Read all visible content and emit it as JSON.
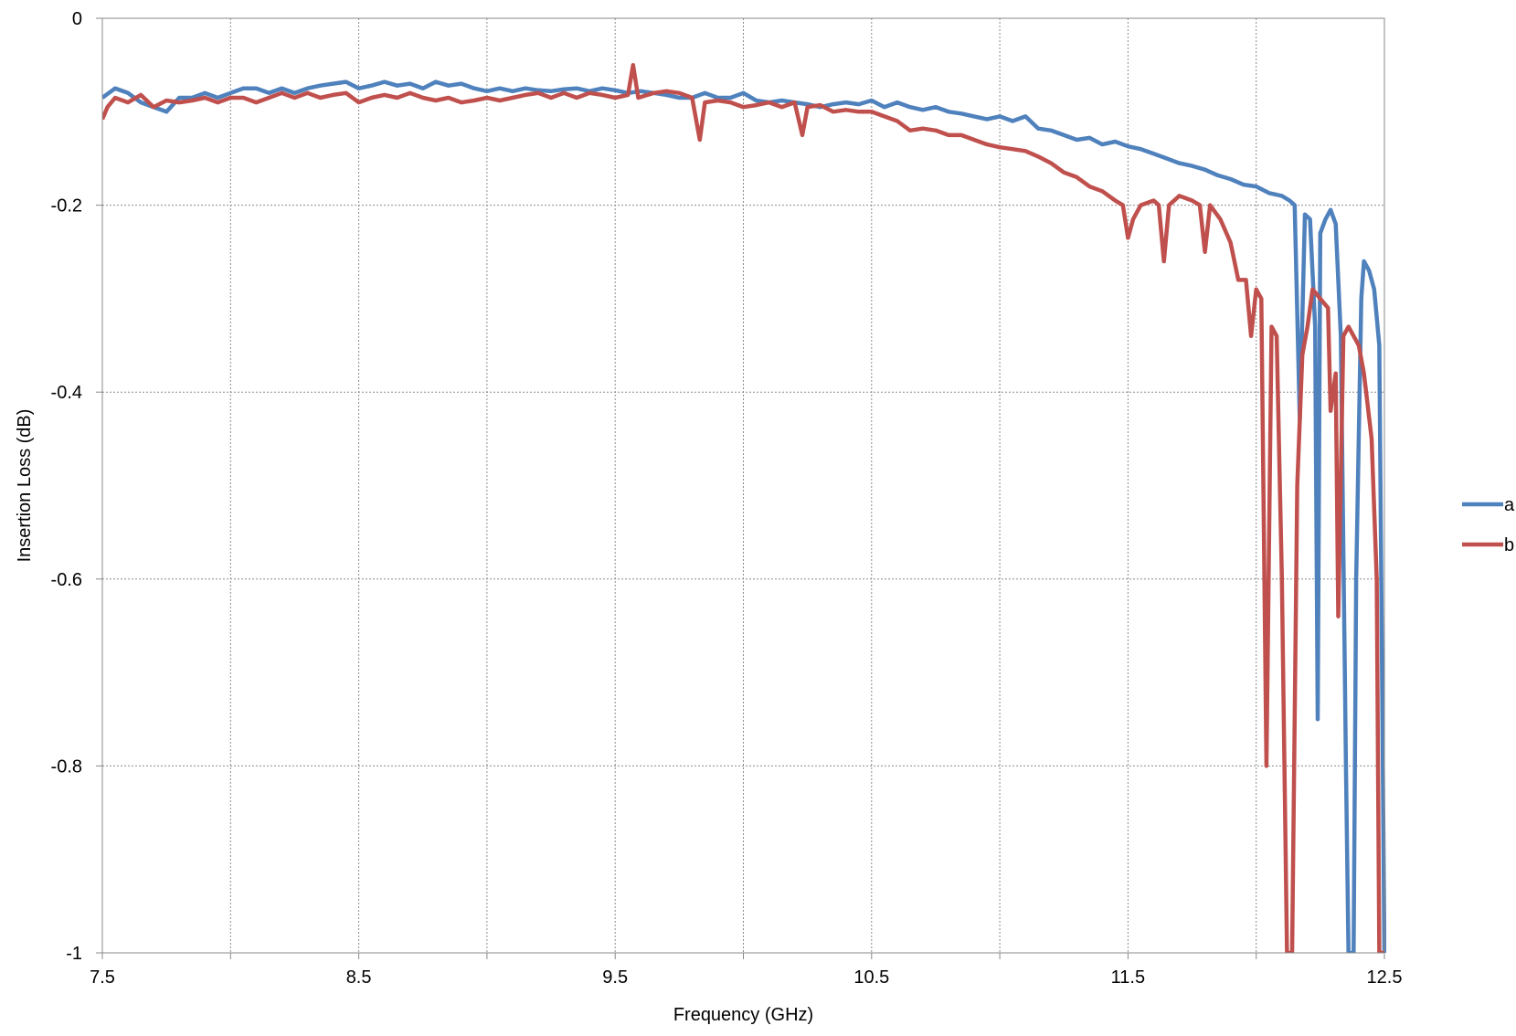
{
  "chart_data": {
    "type": "line",
    "title": "",
    "xlabel": "Frequency (GHz)",
    "ylabel": "Insertion Loss (dB)",
    "xlim": [
      7.5,
      12.5
    ],
    "ylim": [
      -1,
      0
    ],
    "x_ticks": [
      7.5,
      8.5,
      9.5,
      10.5,
      11.5,
      12.5
    ],
    "x_tick_labels": [
      "7.5",
      "8.5",
      "9.5",
      "10.5",
      "11.5",
      "12.5"
    ],
    "x_minor_gridlines": [
      8.0,
      9.0,
      10.0,
      11.0,
      12.0
    ],
    "y_ticks": [
      0,
      -0.2,
      -0.4,
      -0.6,
      -0.8,
      -1
    ],
    "y_tick_labels": [
      "0",
      "-0.2",
      "-0.4",
      "-0.6",
      "-0.8",
      "-1"
    ],
    "grid": true,
    "legend_position": "right",
    "series": [
      {
        "name": "a",
        "color": "#4f81bd",
        "points": [
          [
            7.5,
            -0.085
          ],
          [
            7.55,
            -0.075
          ],
          [
            7.6,
            -0.08
          ],
          [
            7.65,
            -0.09
          ],
          [
            7.7,
            -0.095
          ],
          [
            7.75,
            -0.1
          ],
          [
            7.8,
            -0.085
          ],
          [
            7.85,
            -0.085
          ],
          [
            7.9,
            -0.08
          ],
          [
            7.95,
            -0.085
          ],
          [
            8.0,
            -0.08
          ],
          [
            8.05,
            -0.075
          ],
          [
            8.1,
            -0.075
          ],
          [
            8.15,
            -0.08
          ],
          [
            8.2,
            -0.075
          ],
          [
            8.25,
            -0.08
          ],
          [
            8.3,
            -0.075
          ],
          [
            8.35,
            -0.072
          ],
          [
            8.4,
            -0.07
          ],
          [
            8.45,
            -0.068
          ],
          [
            8.5,
            -0.075
          ],
          [
            8.55,
            -0.072
          ],
          [
            8.6,
            -0.068
          ],
          [
            8.65,
            -0.072
          ],
          [
            8.7,
            -0.07
          ],
          [
            8.75,
            -0.075
          ],
          [
            8.8,
            -0.068
          ],
          [
            8.85,
            -0.072
          ],
          [
            8.9,
            -0.07
          ],
          [
            8.95,
            -0.075
          ],
          [
            9.0,
            -0.078
          ],
          [
            9.05,
            -0.075
          ],
          [
            9.1,
            -0.078
          ],
          [
            9.15,
            -0.075
          ],
          [
            9.2,
            -0.077
          ],
          [
            9.25,
            -0.078
          ],
          [
            9.3,
            -0.076
          ],
          [
            9.35,
            -0.075
          ],
          [
            9.4,
            -0.078
          ],
          [
            9.45,
            -0.075
          ],
          [
            9.5,
            -0.077
          ],
          [
            9.55,
            -0.08
          ],
          [
            9.6,
            -0.078
          ],
          [
            9.65,
            -0.08
          ],
          [
            9.7,
            -0.082
          ],
          [
            9.75,
            -0.085
          ],
          [
            9.8,
            -0.085
          ],
          [
            9.85,
            -0.08
          ],
          [
            9.9,
            -0.085
          ],
          [
            9.95,
            -0.085
          ],
          [
            10.0,
            -0.08
          ],
          [
            10.05,
            -0.088
          ],
          [
            10.1,
            -0.09
          ],
          [
            10.15,
            -0.088
          ],
          [
            10.2,
            -0.09
          ],
          [
            10.25,
            -0.092
          ],
          [
            10.3,
            -0.095
          ],
          [
            10.35,
            -0.092
          ],
          [
            10.4,
            -0.09
          ],
          [
            10.45,
            -0.092
          ],
          [
            10.5,
            -0.088
          ],
          [
            10.55,
            -0.095
          ],
          [
            10.6,
            -0.09
          ],
          [
            10.65,
            -0.095
          ],
          [
            10.7,
            -0.098
          ],
          [
            10.75,
            -0.095
          ],
          [
            10.8,
            -0.1
          ],
          [
            10.85,
            -0.102
          ],
          [
            10.9,
            -0.105
          ],
          [
            10.95,
            -0.108
          ],
          [
            11.0,
            -0.105
          ],
          [
            11.05,
            -0.11
          ],
          [
            11.1,
            -0.105
          ],
          [
            11.15,
            -0.118
          ],
          [
            11.2,
            -0.12
          ],
          [
            11.25,
            -0.125
          ],
          [
            11.3,
            -0.13
          ],
          [
            11.35,
            -0.128
          ],
          [
            11.4,
            -0.135
          ],
          [
            11.45,
            -0.132
          ],
          [
            11.5,
            -0.137
          ],
          [
            11.55,
            -0.14
          ],
          [
            11.6,
            -0.145
          ],
          [
            11.65,
            -0.15
          ],
          [
            11.7,
            -0.155
          ],
          [
            11.75,
            -0.158
          ],
          [
            11.8,
            -0.162
          ],
          [
            11.85,
            -0.168
          ],
          [
            11.9,
            -0.172
          ],
          [
            11.95,
            -0.178
          ],
          [
            12.0,
            -0.18
          ],
          [
            12.05,
            -0.187
          ],
          [
            12.1,
            -0.19
          ],
          [
            12.13,
            -0.195
          ],
          [
            12.15,
            -0.2
          ],
          [
            12.17,
            -0.43
          ],
          [
            12.19,
            -0.21
          ],
          [
            12.21,
            -0.215
          ],
          [
            12.23,
            -0.33
          ],
          [
            12.24,
            -0.75
          ],
          [
            12.25,
            -0.23
          ],
          [
            12.27,
            -0.215
          ],
          [
            12.29,
            -0.205
          ],
          [
            12.31,
            -0.22
          ],
          [
            12.33,
            -0.34
          ],
          [
            12.35,
            -0.8
          ],
          [
            12.36,
            -1.0
          ],
          [
            12.37,
            -1.0
          ],
          [
            12.38,
            -1.0
          ],
          [
            12.39,
            -0.6
          ],
          [
            12.41,
            -0.3
          ],
          [
            12.42,
            -0.26
          ],
          [
            12.44,
            -0.27
          ],
          [
            12.46,
            -0.29
          ],
          [
            12.48,
            -0.35
          ],
          [
            12.5,
            -1.0
          ]
        ]
      },
      {
        "name": "b",
        "color": "#c0504d",
        "points": [
          [
            7.5,
            -0.108
          ],
          [
            7.52,
            -0.095
          ],
          [
            7.55,
            -0.085
          ],
          [
            7.6,
            -0.09
          ],
          [
            7.65,
            -0.082
          ],
          [
            7.7,
            -0.095
          ],
          [
            7.75,
            -0.088
          ],
          [
            7.8,
            -0.09
          ],
          [
            7.85,
            -0.088
          ],
          [
            7.9,
            -0.085
          ],
          [
            7.95,
            -0.09
          ],
          [
            8.0,
            -0.085
          ],
          [
            8.05,
            -0.085
          ],
          [
            8.1,
            -0.09
          ],
          [
            8.15,
            -0.085
          ],
          [
            8.2,
            -0.08
          ],
          [
            8.25,
            -0.085
          ],
          [
            8.3,
            -0.08
          ],
          [
            8.35,
            -0.085
          ],
          [
            8.4,
            -0.082
          ],
          [
            8.45,
            -0.08
          ],
          [
            8.5,
            -0.09
          ],
          [
            8.55,
            -0.085
          ],
          [
            8.6,
            -0.082
          ],
          [
            8.65,
            -0.085
          ],
          [
            8.7,
            -0.08
          ],
          [
            8.75,
            -0.085
          ],
          [
            8.8,
            -0.088
          ],
          [
            8.85,
            -0.085
          ],
          [
            8.9,
            -0.09
          ],
          [
            8.95,
            -0.088
          ],
          [
            9.0,
            -0.085
          ],
          [
            9.05,
            -0.088
          ],
          [
            9.1,
            -0.085
          ],
          [
            9.15,
            -0.082
          ],
          [
            9.2,
            -0.08
          ],
          [
            9.25,
            -0.085
          ],
          [
            9.3,
            -0.08
          ],
          [
            9.35,
            -0.085
          ],
          [
            9.4,
            -0.08
          ],
          [
            9.45,
            -0.082
          ],
          [
            9.5,
            -0.085
          ],
          [
            9.55,
            -0.082
          ],
          [
            9.57,
            -0.05
          ],
          [
            9.59,
            -0.085
          ],
          [
            9.65,
            -0.08
          ],
          [
            9.7,
            -0.078
          ],
          [
            9.75,
            -0.08
          ],
          [
            9.8,
            -0.085
          ],
          [
            9.83,
            -0.13
          ],
          [
            9.85,
            -0.09
          ],
          [
            9.9,
            -0.088
          ],
          [
            9.95,
            -0.09
          ],
          [
            10.0,
            -0.095
          ],
          [
            10.05,
            -0.093
          ],
          [
            10.1,
            -0.09
          ],
          [
            10.15,
            -0.095
          ],
          [
            10.2,
            -0.09
          ],
          [
            10.23,
            -0.125
          ],
          [
            10.25,
            -0.095
          ],
          [
            10.3,
            -0.093
          ],
          [
            10.35,
            -0.1
          ],
          [
            10.4,
            -0.098
          ],
          [
            10.45,
            -0.1
          ],
          [
            10.5,
            -0.1
          ],
          [
            10.55,
            -0.105
          ],
          [
            10.6,
            -0.11
          ],
          [
            10.65,
            -0.12
          ],
          [
            10.7,
            -0.118
          ],
          [
            10.75,
            -0.12
          ],
          [
            10.8,
            -0.125
          ],
          [
            10.85,
            -0.125
          ],
          [
            10.9,
            -0.13
          ],
          [
            10.95,
            -0.135
          ],
          [
            11.0,
            -0.138
          ],
          [
            11.05,
            -0.14
          ],
          [
            11.1,
            -0.142
          ],
          [
            11.15,
            -0.148
          ],
          [
            11.2,
            -0.155
          ],
          [
            11.25,
            -0.165
          ],
          [
            11.3,
            -0.17
          ],
          [
            11.35,
            -0.18
          ],
          [
            11.4,
            -0.185
          ],
          [
            11.45,
            -0.195
          ],
          [
            11.48,
            -0.2
          ],
          [
            11.5,
            -0.235
          ],
          [
            11.52,
            -0.215
          ],
          [
            11.55,
            -0.2
          ],
          [
            11.6,
            -0.195
          ],
          [
            11.62,
            -0.2
          ],
          [
            11.64,
            -0.26
          ],
          [
            11.66,
            -0.2
          ],
          [
            11.7,
            -0.19
          ],
          [
            11.75,
            -0.195
          ],
          [
            11.78,
            -0.2
          ],
          [
            11.8,
            -0.25
          ],
          [
            11.82,
            -0.2
          ],
          [
            11.86,
            -0.215
          ],
          [
            11.9,
            -0.24
          ],
          [
            11.93,
            -0.28
          ],
          [
            11.96,
            -0.28
          ],
          [
            11.98,
            -0.34
          ],
          [
            12.0,
            -0.29
          ],
          [
            12.02,
            -0.3
          ],
          [
            12.04,
            -0.8
          ],
          [
            12.06,
            -0.33
          ],
          [
            12.08,
            -0.34
          ],
          [
            12.1,
            -0.6
          ],
          [
            12.12,
            -1.0
          ],
          [
            12.14,
            -1.0
          ],
          [
            12.16,
            -0.5
          ],
          [
            12.18,
            -0.36
          ],
          [
            12.2,
            -0.33
          ],
          [
            12.22,
            -0.29
          ],
          [
            12.25,
            -0.3
          ],
          [
            12.28,
            -0.31
          ],
          [
            12.29,
            -0.42
          ],
          [
            12.31,
            -0.38
          ],
          [
            12.32,
            -0.64
          ],
          [
            12.34,
            -0.34
          ],
          [
            12.36,
            -0.33
          ],
          [
            12.38,
            -0.34
          ],
          [
            12.4,
            -0.35
          ],
          [
            12.42,
            -0.38
          ],
          [
            12.45,
            -0.45
          ],
          [
            12.47,
            -0.6
          ],
          [
            12.48,
            -1.0
          ],
          [
            12.5,
            -1.0
          ]
        ]
      }
    ]
  }
}
